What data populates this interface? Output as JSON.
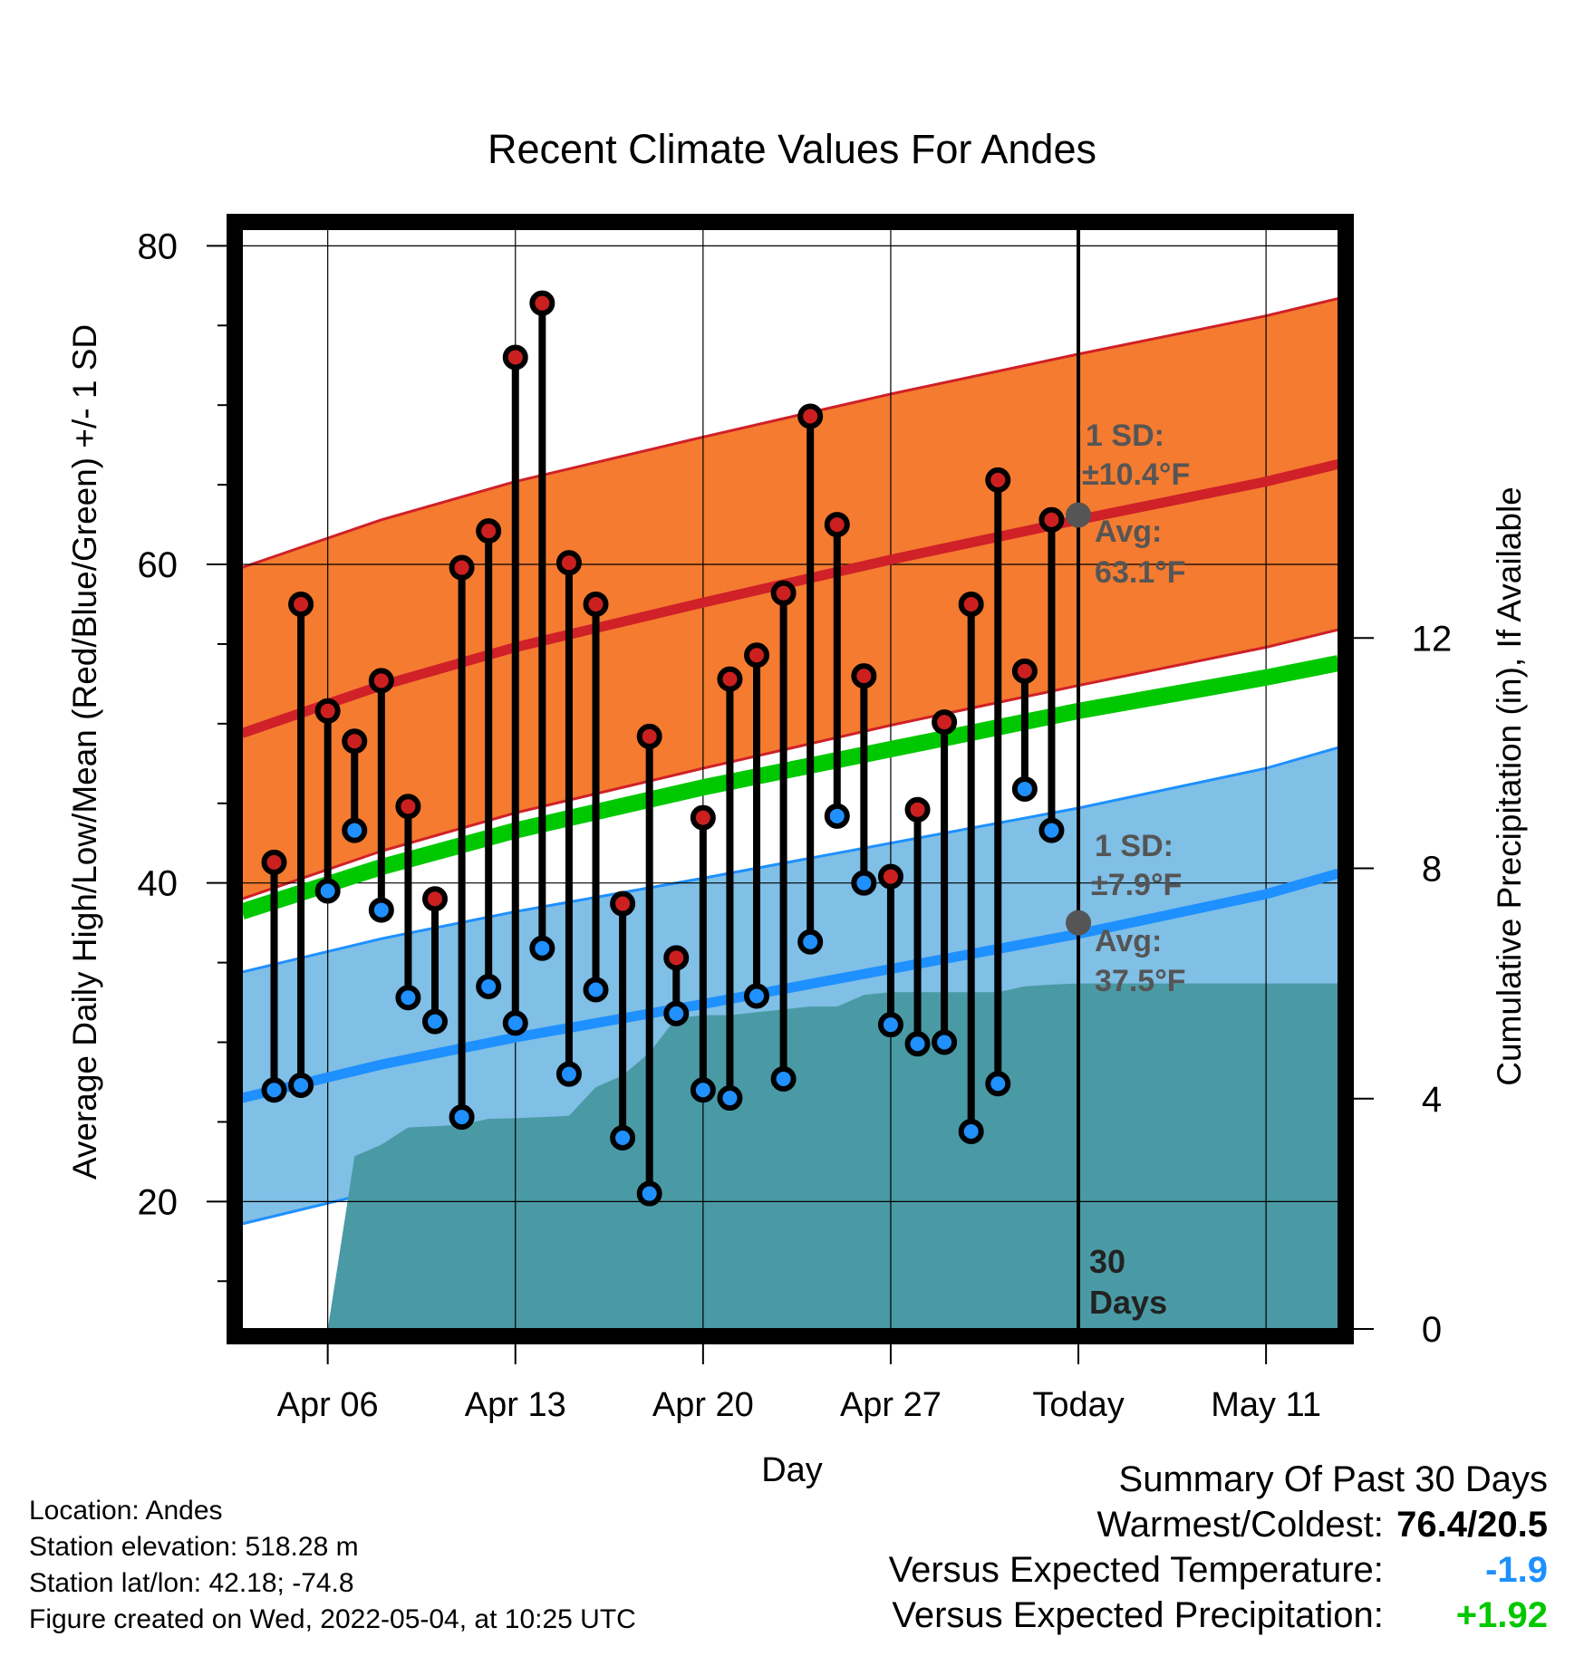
{
  "chart_data": {
    "type": "line",
    "title": "Recent Climate Values For Andes",
    "xlabel": "Day",
    "ylabel": "Average Daily High/Low/Mean (Red/Blue/Green) +/- 1 SD",
    "y2label": "Cumulative Precipitation (in), If Available",
    "x_ticks": [
      "Apr 06",
      "Apr 13",
      "Apr 20",
      "Apr 27",
      "Today",
      "May 11"
    ],
    "x_tick_days": [
      6,
      13,
      20,
      27,
      34,
      41
    ],
    "xlim": [
      2.8,
      43.7
    ],
    "y_ticks": [
      20,
      40,
      60,
      80
    ],
    "ylim": [
      12,
      81.5
    ],
    "y2_ticks": [
      0,
      4,
      8,
      12
    ],
    "y2_per_degree": 3.615,
    "grid": true,
    "today_day": 34,
    "normal_high": {
      "x": [
        2.8,
        8,
        13,
        20,
        27,
        34,
        41,
        43.7
      ],
      "y": [
        49.4,
        52.4,
        54.8,
        57.6,
        60.3,
        62.8,
        65.2,
        66.3
      ]
    },
    "normal_high_sd": 10.4,
    "normal_low": {
      "x": [
        2.8,
        8,
        13,
        20,
        27,
        34,
        41,
        43.7
      ],
      "y": [
        26.5,
        28.6,
        30.3,
        32.4,
        34.6,
        36.8,
        39.3,
        40.6
      ]
    },
    "normal_low_sd": 7.9,
    "normal_mean": {
      "x": [
        2.8,
        8,
        13,
        20,
        27,
        34,
        41,
        43.7
      ],
      "y": [
        38.2,
        41.0,
        43.3,
        46.0,
        48.4,
        50.8,
        52.9,
        53.8
      ]
    },
    "observed": {
      "day": [
        4,
        5,
        6,
        7,
        8,
        9,
        10,
        11,
        12,
        13,
        14,
        15,
        16,
        17,
        18,
        19,
        20,
        21,
        22,
        23,
        24,
        25,
        26,
        27,
        28,
        29,
        30,
        31,
        32,
        33
      ],
      "high": [
        41.3,
        57.5,
        50.8,
        48.9,
        52.7,
        44.8,
        39.0,
        59.8,
        62.1,
        73.0,
        76.4,
        60.1,
        57.5,
        38.7,
        49.2,
        35.3,
        44.1,
        52.8,
        54.3,
        58.2,
        69.3,
        62.5,
        53.0,
        40.4,
        44.6,
        50.1,
        57.5,
        65.3,
        53.3,
        62.8
      ],
      "low": [
        27.0,
        27.3,
        39.5,
        43.3,
        38.3,
        32.8,
        31.3,
        25.3,
        33.5,
        31.2,
        35.9,
        28.0,
        33.3,
        24.0,
        20.5,
        31.8,
        27.0,
        26.5,
        32.9,
        27.7,
        36.3,
        44.2,
        40.0,
        31.1,
        29.9,
        30.0,
        24.4,
        27.4,
        45.9,
        43.3
      ]
    },
    "precip": {
      "day": [
        6,
        7,
        8,
        9,
        10,
        11,
        12,
        13,
        14,
        15,
        16,
        17,
        18,
        19,
        20,
        21,
        22,
        23,
        24,
        25,
        26,
        27,
        28,
        29,
        30,
        31,
        32,
        33,
        34,
        43.7
      ],
      "in": [
        0.0,
        3.0,
        3.2,
        3.5,
        3.52,
        3.55,
        3.65,
        3.66,
        3.68,
        3.7,
        4.2,
        4.4,
        4.8,
        5.4,
        5.45,
        5.45,
        5.5,
        5.55,
        5.6,
        5.6,
        5.8,
        5.85,
        5.85,
        5.85,
        5.85,
        5.85,
        5.95,
        5.98,
        6.0,
        6.0
      ]
    },
    "annotations": {
      "high_sd_label": "1 SD:",
      "high_sd_value": "±10.4°F",
      "high_avg_label": "Avg:",
      "high_avg_value": "63.1°F",
      "high_avg_y": 63.1,
      "low_sd_label": "1 SD:",
      "low_sd_value": "±7.9°F",
      "low_avg_label": "Avg:",
      "low_avg_value": "37.5°F",
      "low_avg_y": 37.5,
      "window_label_1": "30",
      "window_label_2": "Days"
    },
    "colors": {
      "high_band": "#f47b30",
      "high_line": "#d02028",
      "low_band": "#80bfe6",
      "low_line": "#1e90ff",
      "mean_line": "#00c800",
      "precip": "#4a9aa5",
      "high_dot": "#cc2020",
      "low_dot": "#2090ff",
      "annotation": "#555555"
    }
  },
  "footer": {
    "location": "Location: Andes",
    "elevation": "Station elevation: 518.28 m",
    "latlon": "Station lat/lon: 42.18; -74.8",
    "created": "Figure created on Wed, 2022-05-04, at 10:25 UTC"
  },
  "summary": {
    "heading": "Summary Of Past 30 Days",
    "warm_cold_label": "Warmest/Coldest:",
    "warm_cold_value": "76.4/20.5",
    "temp_label": "Versus Expected Temperature:",
    "temp_value": "-1.9",
    "temp_color": "#1e90ff",
    "precip_label": "Versus Expected Precipitation:",
    "precip_value": "+1.92",
    "precip_color": "#00c800"
  }
}
